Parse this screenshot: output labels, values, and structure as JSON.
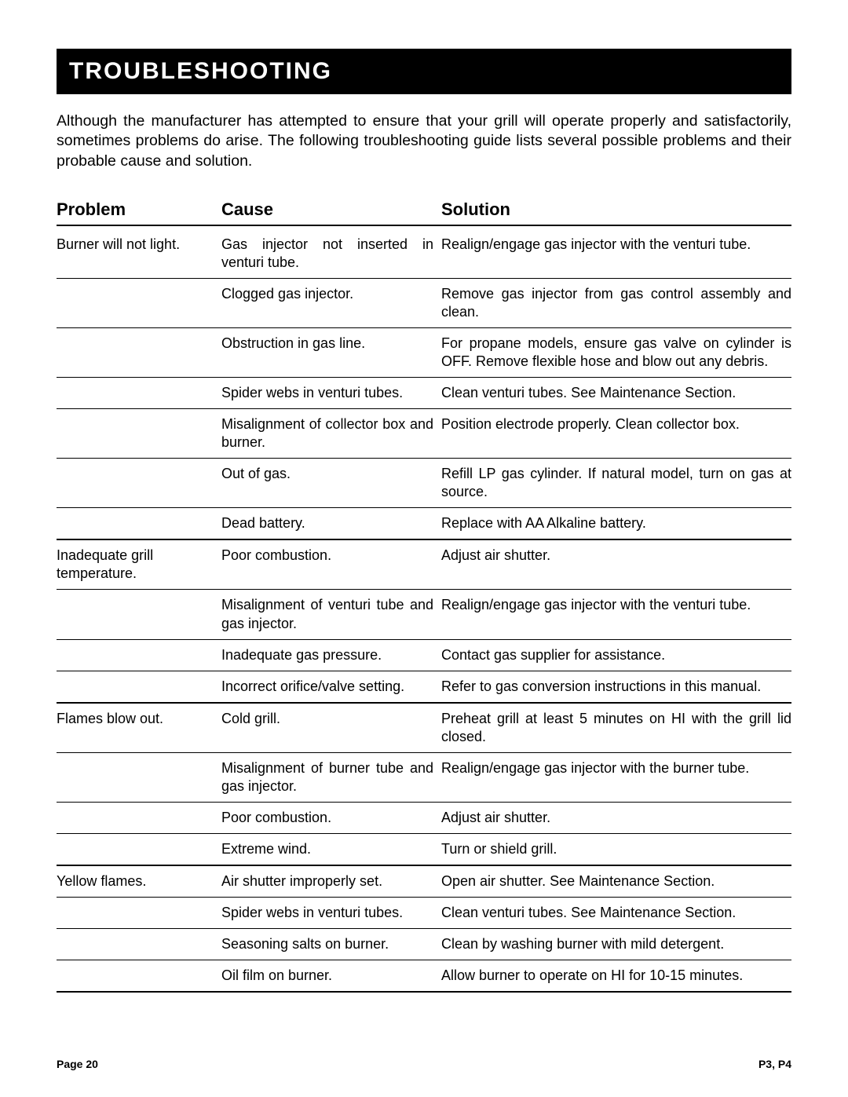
{
  "title": "TROUBLESHOOTING",
  "intro": "Although the manufacturer has attempted to ensure that your grill will operate properly and satisfactorily, sometimes problems do arise.  The following troubleshooting guide lists several possible problems and their probable cause and solution.",
  "headers": {
    "problem": "Problem",
    "cause": "Cause",
    "solution": "Solution"
  },
  "sections": [
    {
      "problem": "Burner will not light.",
      "items": [
        {
          "cause": "Gas injector not inserted in venturi tube.",
          "solution": "Realign/engage gas injector with the venturi tube."
        },
        {
          "cause": "Clogged gas injector.",
          "solution": "Remove gas injector from gas control assembly and clean."
        },
        {
          "cause": "Obstruction in gas line.",
          "solution": "For propane models, ensure gas valve on cylinder is OFF.  Remove flexible hose and blow out any debris."
        },
        {
          "cause": "Spider webs in venturi tubes.",
          "solution": "Clean venturi tubes.  See Maintenance Section."
        },
        {
          "cause": "Misalignment of collector box and burner.",
          "solution": "Position electrode properly.  Clean collector box."
        },
        {
          "cause": "Out of gas.",
          "solution": "Refill LP gas cylinder.  If natural model, turn on gas at source."
        },
        {
          "cause": "Dead battery.",
          "solution": "Replace with AA Alkaline battery."
        }
      ]
    },
    {
      "problem": "Inadequate grill temperature.",
      "items": [
        {
          "cause": "Poor combustion.",
          "solution": "Adjust air shutter."
        },
        {
          "cause": "Misalignment of venturi tube and gas injector.",
          "solution": "Realign/engage gas injector with the venturi tube."
        },
        {
          "cause": "Inadequate gas pressure.",
          "solution": "Contact gas supplier for assistance."
        },
        {
          "cause": "Incorrect orifice/valve setting.",
          "solution": "Refer to gas conversion instructions in this manual."
        }
      ]
    },
    {
      "problem": "Flames blow out.",
      "items": [
        {
          "cause": "Cold grill.",
          "solution": "Preheat grill at least 5 minutes on HI with the grill lid closed."
        },
        {
          "cause": "Misalignment of burner tube and gas injector.",
          "solution": "Realign/engage gas injector with the burner tube."
        },
        {
          "cause": "Poor combustion.",
          "solution": "Adjust air shutter."
        },
        {
          "cause": "Extreme wind.",
          "solution": "Turn or shield grill."
        }
      ]
    },
    {
      "problem": "Yellow flames.",
      "items": [
        {
          "cause": "Air shutter improperly set.",
          "solution": "Open air shutter.  See Maintenance Section."
        },
        {
          "cause": "Spider webs in venturi tubes.",
          "solution": "Clean venturi tubes.  See Maintenance Section."
        },
        {
          "cause": "Seasoning salts on burner.",
          "solution": "Clean by washing burner with mild detergent."
        },
        {
          "cause": "Oil film on burner.",
          "solution": "Allow burner to operate on HI for 10-15 minutes."
        }
      ]
    }
  ],
  "footer": {
    "left": "Page 20",
    "right": "P3, P4"
  }
}
